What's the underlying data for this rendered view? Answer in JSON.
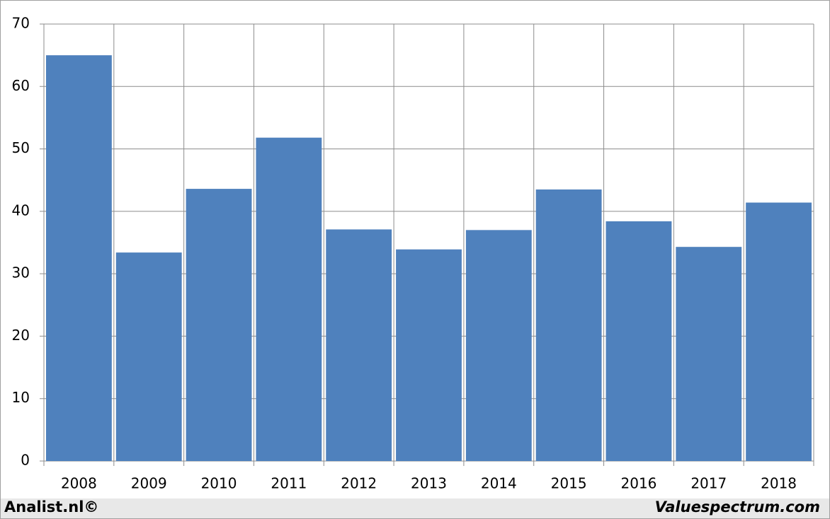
{
  "chart_data": {
    "type": "bar",
    "categories": [
      "2008",
      "2009",
      "2010",
      "2011",
      "2012",
      "2013",
      "2014",
      "2015",
      "2016",
      "2017",
      "2018"
    ],
    "values": [
      65.0,
      33.4,
      43.6,
      51.8,
      37.1,
      33.9,
      37.0,
      43.5,
      38.4,
      34.3,
      41.4
    ],
    "color": "#4f81bd",
    "ylim": [
      0,
      70
    ],
    "yticks": [
      0,
      10,
      20,
      30,
      40,
      50,
      60,
      70
    ],
    "grid": true,
    "credits": [
      "Analist.nl©",
      "Valuespectrum.com"
    ]
  }
}
